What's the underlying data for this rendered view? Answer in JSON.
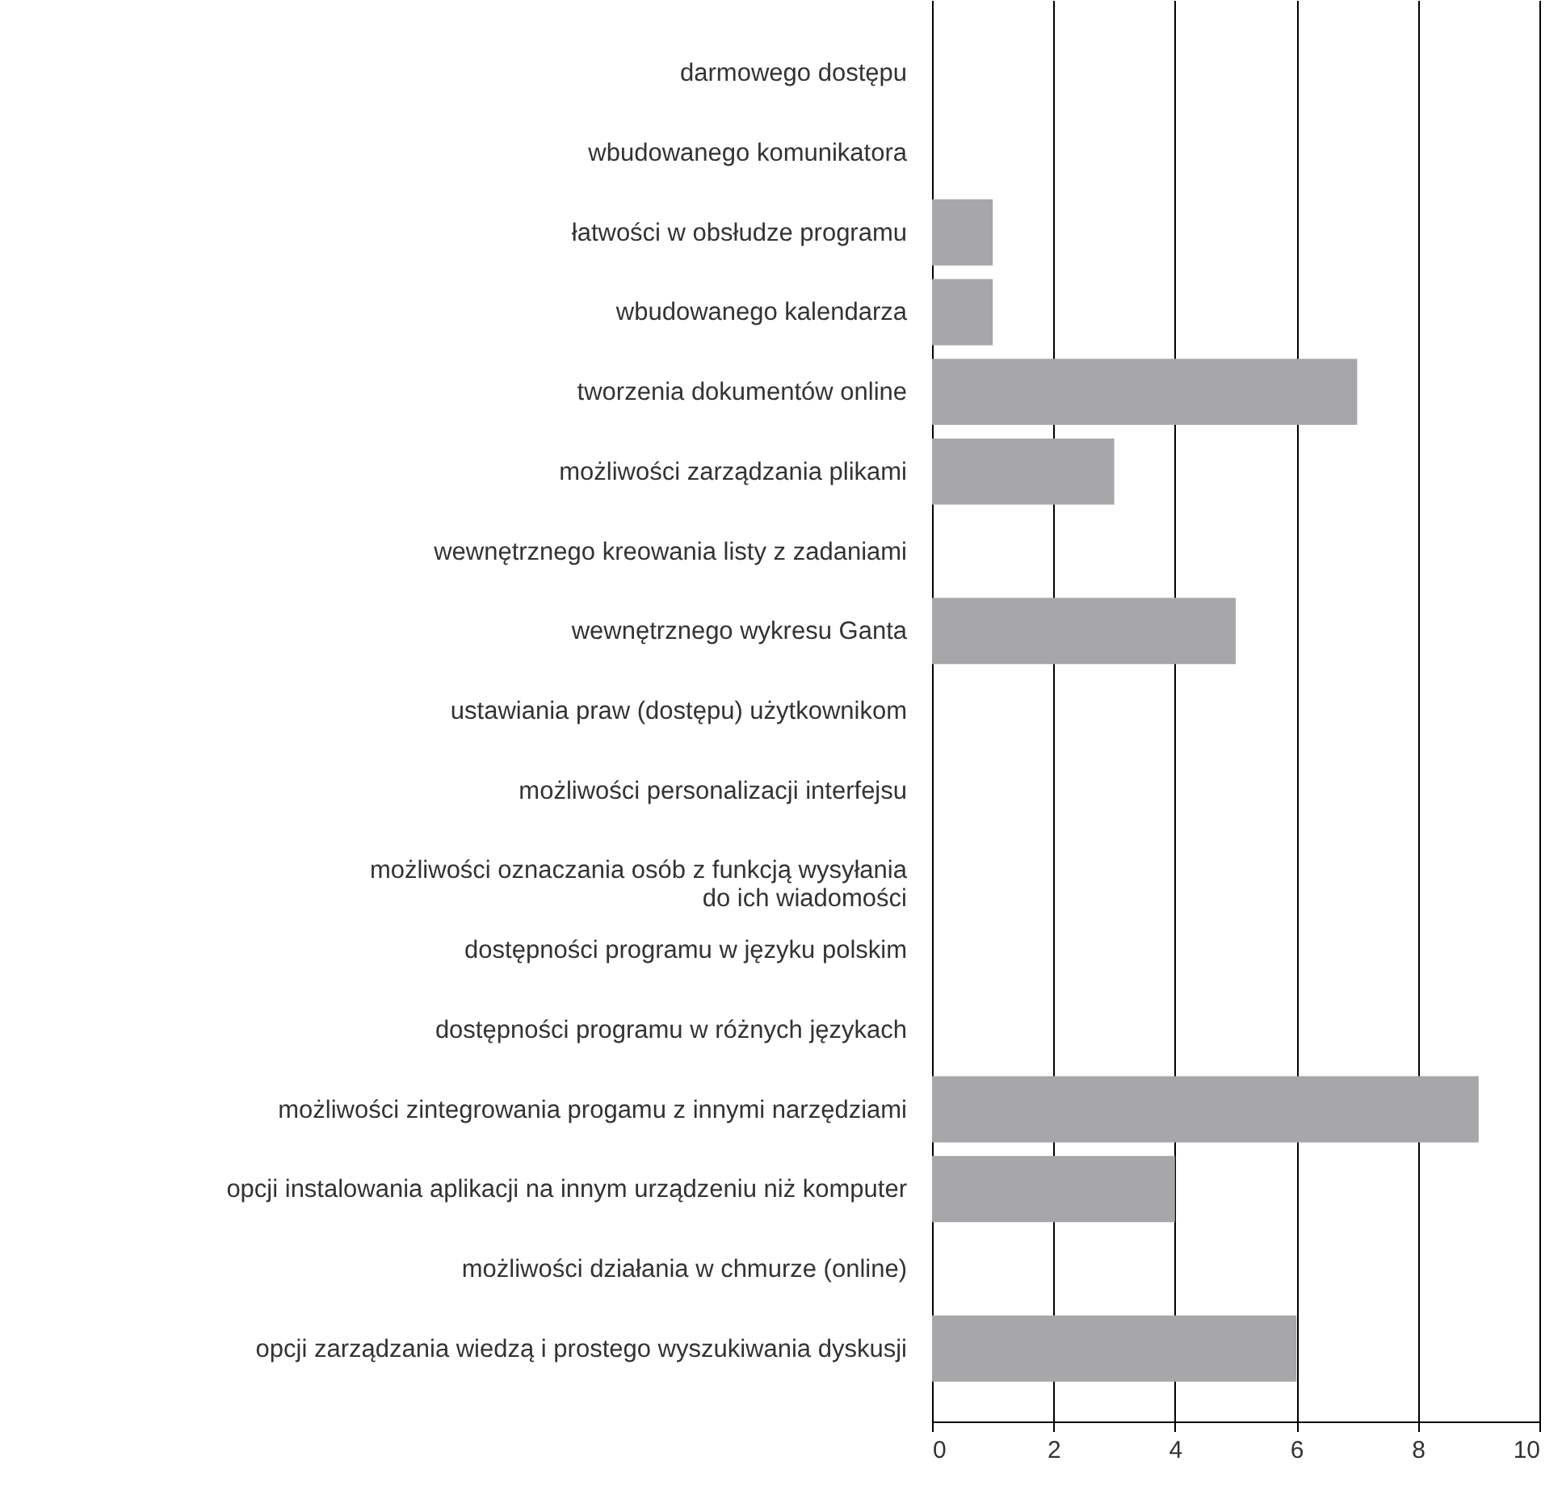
{
  "chart_data": {
    "type": "bar",
    "orientation": "horizontal",
    "categories": [
      "darmowego dostępu",
      "wbudowanego komunikatora",
      "łatwości w obsłudze programu",
      "wbudowanego kalendarza",
      "tworzenia dokumentów online",
      "możliwości zarządzania plikami",
      "wewnętrznego kreowania listy z zadaniami",
      "wewnętrznego wykresu Ganta",
      "ustawiania praw (dostępu) użytkownikom",
      "możliwości personalizacji interfejsu",
      "możliwości oznaczania osób z funkcją wysyłania\ndo ich wiadomości",
      "dostępności programu w języku polskim",
      "dostępności programu w różnych językach",
      "możliwości zintegrowania progamu z innymi narzędziami",
      "opcji instalowania aplikacji na innym urządzeniu niż komputer",
      "możliwości działania w chmurze (online)",
      "opcji zarządzania wiedzą i prostego wyszukiwania dyskusji"
    ],
    "values": [
      0,
      0,
      1,
      1,
      7,
      3,
      0,
      5,
      0,
      0,
      0,
      0,
      0,
      9,
      4,
      0,
      6
    ],
    "color": "#a7a7a9",
    "xlim": [
      0,
      10
    ],
    "xticks": [
      0,
      2,
      4,
      6,
      8,
      10
    ],
    "grid": "x"
  }
}
